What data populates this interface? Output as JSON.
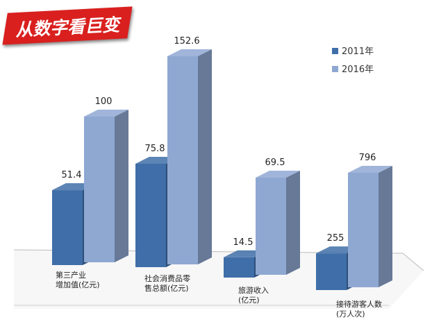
{
  "chart_data": {
    "type": "bar3d",
    "title": "从数字看巨变",
    "categories": [
      "第三产业\n增加值(亿元)",
      "社会消费品零\n售总额(亿元)",
      "旅游收入\n(亿元)",
      "接待游客人数\n(万人次)"
    ],
    "series": [
      {
        "name": "2011年",
        "color": "#3f6ea8",
        "values": [
          51.4,
          75.8,
          14.5,
          255
        ]
      },
      {
        "name": "2016年",
        "color": "#8fa8d2",
        "values": [
          100,
          152.6,
          69.5,
          796
        ]
      }
    ],
    "legend": "top-right"
  }
}
